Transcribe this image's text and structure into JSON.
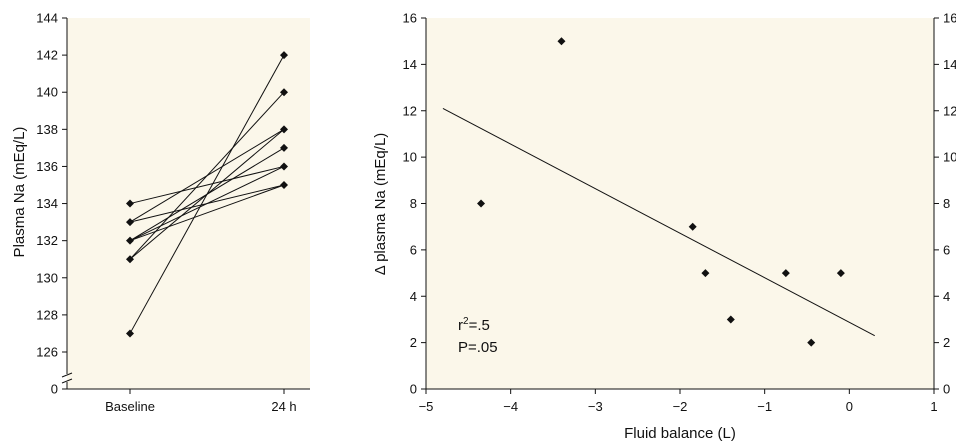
{
  "chart_data": [
    {
      "type": "line",
      "ylabel": "Plasma Na (mEq/L)",
      "xlabel": "",
      "categories": [
        "Baseline",
        "24 h"
      ],
      "ylim": [
        126,
        144
      ],
      "y_ticks": [
        126,
        128,
        130,
        132,
        134,
        136,
        138,
        140,
        142,
        144
      ],
      "y_zero_tick": "0",
      "axis_break": true,
      "grid": false,
      "series": [
        {
          "values": [
            127,
            142
          ]
        },
        {
          "values": [
            131,
            140
          ]
        },
        {
          "values": [
            131,
            138
          ]
        },
        {
          "values": [
            132,
            137
          ]
        },
        {
          "values": [
            132,
            136
          ]
        },
        {
          "values": [
            132,
            135
          ]
        },
        {
          "values": [
            133,
            138
          ]
        },
        {
          "values": [
            133,
            135
          ]
        },
        {
          "values": [
            134,
            136
          ]
        }
      ],
      "colors": {
        "background": "#fbf7ea",
        "ink": "#111111"
      }
    },
    {
      "type": "scatter",
      "xlabel": "Fluid balance (L)",
      "ylabel": "Δ plasma Na (mEq/L)",
      "xlim": [
        -5,
        1
      ],
      "ylim": [
        0,
        16
      ],
      "x_ticks": [
        -5,
        -4,
        -3,
        -2,
        -1,
        0,
        1
      ],
      "x_tick_labels": [
        "−5",
        "−4",
        "−3",
        "−2",
        "−1",
        "0",
        "1"
      ],
      "y_ticks": [
        0,
        2,
        4,
        6,
        8,
        10,
        12,
        14,
        16
      ],
      "right_axis_ticks": [
        0,
        2,
        4,
        6,
        8,
        10,
        12,
        14,
        16
      ],
      "grid": false,
      "points": [
        {
          "x": -4.35,
          "y": 8
        },
        {
          "x": -3.4,
          "y": 15
        },
        {
          "x": -1.85,
          "y": 7
        },
        {
          "x": -1.7,
          "y": 5
        },
        {
          "x": -1.4,
          "y": 3
        },
        {
          "x": -0.75,
          "y": 5
        },
        {
          "x": -0.45,
          "y": 2
        },
        {
          "x": -0.1,
          "y": 5
        }
      ],
      "fit_line": {
        "x": [
          -4.8,
          0.3
        ],
        "y": [
          12.1,
          2.3
        ]
      },
      "annotations": {
        "r2_prefix": "r",
        "r2_sup": "2",
        "r2_value": "=.5",
        "p_text": "P=.05"
      },
      "colors": {
        "background": "#fbf7ea",
        "ink": "#111111"
      }
    }
  ]
}
